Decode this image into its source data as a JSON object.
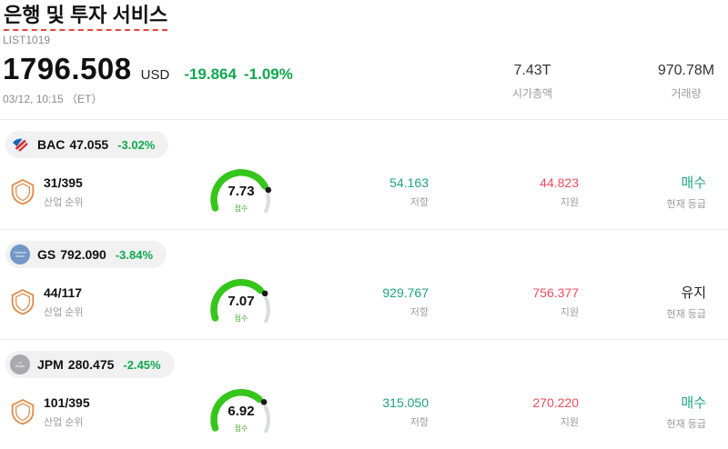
{
  "header": {
    "title": "은행 및 투자 서비스",
    "list_id": "LIST1019",
    "price": "1796.508",
    "currency": "USD",
    "change_abs": "-19.864",
    "change_pct": "-1.09%",
    "datetime": "03/12, 10:15 （ET）",
    "market_cap": {
      "value": "7.43T",
      "label": "시가총액"
    },
    "volume": {
      "value": "970.78M",
      "label": "거래량"
    }
  },
  "labels": {
    "industry_rank": "산업 순위",
    "score": "점수",
    "resistance": "저항",
    "support": "지원",
    "current_rating": "현재 등급"
  },
  "stocks": [
    {
      "ticker": "BAC",
      "price": "47.055",
      "change": "-3.02%",
      "logo_icon": "bac-flag-logo",
      "rank": "31/395",
      "score": "7.73",
      "score_value": 7.73,
      "resistance": "54.163",
      "support": "44.823",
      "rating": "매수",
      "rating_color": "#1fa37d"
    },
    {
      "ticker": "GS",
      "price": "792.090",
      "change": "-3.84%",
      "logo_icon": "goldman-sachs-logo",
      "rank": "44/117",
      "score": "7.07",
      "score_value": 7.07,
      "resistance": "929.767",
      "support": "756.377",
      "rating": "유지",
      "rating_color": "#1d1d1f"
    },
    {
      "ticker": "JPM",
      "price": "280.475",
      "change": "-2.45%",
      "logo_icon": "jpmorgan-logo",
      "rank": "101/395",
      "score": "6.92",
      "score_value": 6.92,
      "resistance": "315.050",
      "support": "270.220",
      "rating": "매수",
      "rating_color": "#1fa37d"
    }
  ],
  "colors": {
    "positive_green": "#0fa84e",
    "teal": "#1fa37d",
    "support_red": "#ee4d5f",
    "gauge_green": "#35c51b",
    "gauge_track": "#d9dde2",
    "shield_orange": "#dd8a4a",
    "underline_red": "#e8453c"
  }
}
